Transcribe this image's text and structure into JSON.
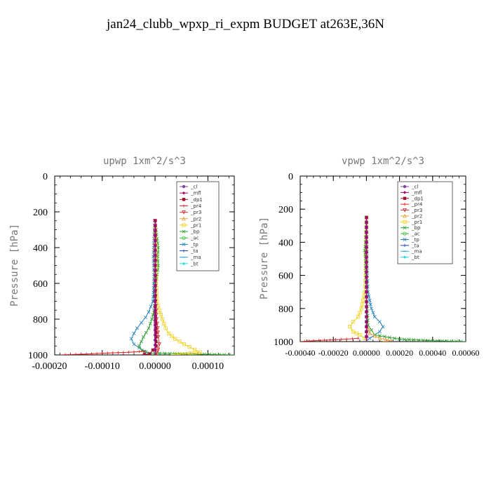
{
  "title": "jan24_clubb_wpxp_ri_expm  BUDGET at263E,36N",
  "legend": [
    {
      "name": "_cl",
      "color": "#8040a0",
      "marker": "circle"
    },
    {
      "name": "_mfl",
      "color": "#a0006a",
      "marker": "diamond"
    },
    {
      "name": "_dp1",
      "color": "#a01030",
      "marker": "square"
    },
    {
      "name": "_pr4",
      "color": "#e02020",
      "marker": "cross"
    },
    {
      "name": "_pr3",
      "color": "#e03030",
      "marker": "tri-down"
    },
    {
      "name": "_pr2",
      "color": "#e8a040",
      "marker": "tri-up"
    },
    {
      "name": "_pr1",
      "color": "#f0d020",
      "marker": "square-open"
    },
    {
      "name": "_bp",
      "color": "#30a030",
      "marker": "x"
    },
    {
      "name": "_ac",
      "color": "#30c030",
      "marker": "circle-open"
    },
    {
      "name": "_tp",
      "color": "#2080c0",
      "marker": "x"
    },
    {
      "name": "_ta",
      "color": "#2040c0",
      "marker": "plus"
    },
    {
      "name": "_ma",
      "color": "#20a0e0",
      "marker": "dash"
    },
    {
      "name": "_bt",
      "color": "#20e0e0",
      "marker": "diamond"
    }
  ],
  "chart_data": [
    {
      "type": "line",
      "title": "upwp   1xm^2/s^3",
      "ylabel": "Pressure [hPa]",
      "xlabel": "",
      "xlim": [
        -0.00019,
        0.00015
      ],
      "ylim": [
        1000,
        0
      ],
      "xticks": [
        -0.0002,
        -0.0001,
        0.0,
        0.0001
      ],
      "xtick_labels": [
        "-0.00020",
        "-0.00010",
        "0.00000",
        "0.00010"
      ],
      "yticks": [
        0,
        200,
        400,
        600,
        800,
        1000
      ],
      "ytick_labels": [
        "0",
        "200",
        "400",
        "600",
        "800",
        "1000"
      ],
      "series": [
        {
          "name": "_tp",
          "y": [
            250,
            350,
            450,
            550,
            650,
            700,
            730,
            760,
            790,
            820,
            850,
            880,
            910,
            940,
            960,
            980,
            995
          ],
          "x": [
            0,
            -2e-06,
            -3e-06,
            -2e-06,
            -3e-06,
            -4e-06,
            -8e-06,
            -1.2e-05,
            -1.8e-05,
            -2.6e-05,
            -3.4e-05,
            -4e-05,
            -4.5e-05,
            -4e-05,
            -3e-05,
            -2e-05,
            -1e-05
          ]
        },
        {
          "name": "_bp",
          "y": [
            250,
            350,
            400,
            450,
            500,
            550,
            600,
            650,
            700,
            750,
            800,
            850,
            900,
            950,
            975,
            990,
            1000
          ],
          "x": [
            0,
            4e-06,
            6e-06,
            5e-06,
            6e-06,
            4e-06,
            2e-06,
            1e-06,
            0,
            -2e-06,
            -6e-06,
            -1.2e-05,
            -2.2e-05,
            -3e-05,
            -2.5e-05,
            -1e-05,
            0.00015
          ]
        },
        {
          "name": "_pr1",
          "y": [
            250,
            400,
            600,
            700,
            750,
            800,
            850,
            880,
            910,
            940,
            970,
            985,
            995,
            1000
          ],
          "x": [
            0,
            1e-06,
            2e-06,
            4e-06,
            8e-06,
            1.4e-05,
            2e-05,
            2.6e-05,
            3.8e-05,
            5.5e-05,
            7.5e-05,
            8.5e-05,
            6e-05,
            3e-05
          ]
        },
        {
          "name": "_pr3",
          "y": [
            250,
            500,
            700,
            800,
            850,
            900,
            940,
            970,
            990,
            1000
          ],
          "x": [
            0,
            0,
            1e-06,
            3e-06,
            5e-06,
            6e-06,
            8e-06,
            6e-06,
            3e-06,
            0
          ]
        },
        {
          "name": "_pr4",
          "y": [
            980,
            985,
            990,
            995,
            1000
          ],
          "x": [
            -2e-05,
            -5e-05,
            -9e-05,
            -0.00013,
            -0.00018
          ]
        },
        {
          "name": "_dp1",
          "y": [
            250,
            500,
            700,
            850,
            950,
            995,
            1000
          ],
          "x": [
            0,
            0,
            0,
            1e-06,
            2e-06,
            -1e-05,
            -3e-05
          ]
        },
        {
          "name": "_cl",
          "y": [
            250,
            1000
          ],
          "x": [
            0,
            0
          ]
        },
        {
          "name": "_mfl",
          "y": [
            250,
            1000
          ],
          "x": [
            1e-06,
            1e-06
          ]
        }
      ]
    },
    {
      "type": "line",
      "title": "vpwp   1xm^2/s^3",
      "ylabel": "Pressure [hPa]",
      "xlabel": "",
      "xlim": [
        -0.0004,
        0.0006
      ],
      "ylim": [
        1000,
        0
      ],
      "xticks": [
        -0.0004,
        -0.0002,
        0.0,
        0.0002,
        0.0004,
        0.0006
      ],
      "xtick_labels": [
        "-0.00040",
        "-0.00020",
        "0.00000",
        "0.00020",
        "0.00040",
        "0.00060"
      ],
      "yticks": [
        0,
        200,
        400,
        600,
        800,
        1000
      ],
      "ytick_labels": [
        "0",
        "200",
        "400",
        "600",
        "800",
        "1000"
      ],
      "series": [
        {
          "name": "_tp",
          "y": [
            250,
            600,
            700,
            750,
            800,
            850,
            880,
            910,
            940,
            960,
            980,
            995
          ],
          "x": [
            0,
            5e-06,
            1e-05,
            2e-05,
            3e-05,
            5e-05,
            8e-05,
            0.0001,
            8e-05,
            5e-05,
            2e-05,
            0
          ]
        },
        {
          "name": "_pr1",
          "y": [
            250,
            600,
            700,
            750,
            800,
            850,
            880,
            910,
            940,
            960,
            980,
            995
          ],
          "x": [
            0,
            -5e-06,
            -1e-05,
            -2e-05,
            -3e-05,
            -5e-05,
            -8e-05,
            -0.0001,
            -8e-05,
            -4e-05,
            -1e-05,
            0
          ]
        },
        {
          "name": "_bp",
          "y": [
            250,
            400,
            450,
            500,
            700,
            900,
            960,
            985,
            995,
            1000
          ],
          "x": [
            0,
            -5e-06,
            -1e-05,
            -5e-06,
            0,
            1e-05,
            5e-05,
            0.0002,
            0.0004,
            0.0006
          ]
        },
        {
          "name": "_pr4",
          "y": [
            980,
            985,
            990,
            995,
            1000
          ],
          "x": [
            -5e-05,
            -0.00012,
            -0.00022,
            -0.00032,
            -0.0004
          ]
        },
        {
          "name": "_pr2",
          "y": [
            900,
            950,
            980,
            995,
            1000
          ],
          "x": [
            0,
            2e-05,
            8e-05,
            0.00015,
            0.0001
          ]
        },
        {
          "name": "_dp1",
          "y": [
            250,
            1000
          ],
          "x": [
            0,
            0
          ]
        },
        {
          "name": "_cl",
          "y": [
            250,
            1000
          ],
          "x": [
            0,
            0
          ]
        },
        {
          "name": "_mfl",
          "y": [
            250,
            1000
          ],
          "x": [
            2e-06,
            2e-06
          ]
        }
      ]
    }
  ]
}
